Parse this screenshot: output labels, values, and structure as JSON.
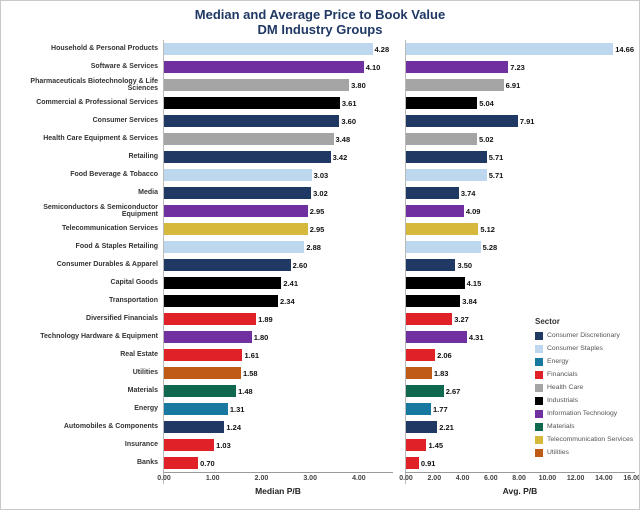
{
  "title": {
    "line1": "Median and Average Price to Book Value",
    "line2": "DM Industry Groups"
  },
  "chart_data": {
    "type": "bar",
    "orientation": "horizontal",
    "grid": false,
    "panels": [
      {
        "name": "median",
        "xlabel": "Median P/B",
        "xlim": [
          0,
          4.7
        ],
        "ticks": [
          "0.00",
          "1.00",
          "2.00",
          "3.00",
          "4.00"
        ],
        "tick_values": [
          0,
          1,
          2,
          3,
          4
        ]
      },
      {
        "name": "average",
        "xlabel": "Avg. P/B",
        "xlim": [
          0,
          16.2
        ],
        "ticks": [
          "0.00",
          "2.00",
          "4.00",
          "6.00",
          "8.00",
          "10.00",
          "12.00",
          "14.00",
          "16.00"
        ],
        "tick_values": [
          0,
          2,
          4,
          6,
          8,
          10,
          12,
          14,
          16
        ]
      }
    ],
    "rows": [
      {
        "label": "Household & Personal Products",
        "sector": "Consumer Staples",
        "median": 4.28,
        "average": 14.66
      },
      {
        "label": "Software & Services",
        "sector": "Information Technology",
        "median": 4.1,
        "average": 7.23
      },
      {
        "label": "Pharmaceuticals Biotechnology & Life Sciences",
        "sector": "Health Care",
        "median": 3.8,
        "average": 6.91
      },
      {
        "label": "Commercial & Professional Services",
        "sector": "Industrials",
        "median": 3.61,
        "average": 5.04
      },
      {
        "label": "Consumer Services",
        "sector": "Consumer Discretionary",
        "median": 3.6,
        "average": 7.91
      },
      {
        "label": "Health Care Equipment & Services",
        "sector": "Health Care",
        "median": 3.48,
        "average": 5.02
      },
      {
        "label": "Retailing",
        "sector": "Consumer Discretionary",
        "median": 3.42,
        "average": 5.71
      },
      {
        "label": "Food Beverage & Tobacco",
        "sector": "Consumer Staples",
        "median": 3.03,
        "average": 5.71
      },
      {
        "label": "Media",
        "sector": "Consumer Discretionary",
        "median": 3.02,
        "average": 3.74
      },
      {
        "label": "Semiconductors & Semiconductor Equipment",
        "sector": "Information Technology",
        "median": 2.95,
        "average": 4.09
      },
      {
        "label": "Telecommunication Services",
        "sector": "Telecommunication Services",
        "median": 2.95,
        "average": 5.12
      },
      {
        "label": "Food & Staples Retailing",
        "sector": "Consumer Staples",
        "median": 2.88,
        "average": 5.28
      },
      {
        "label": "Consumer Durables & Apparel",
        "sector": "Consumer Discretionary",
        "median": 2.6,
        "average": 3.5
      },
      {
        "label": "Capital Goods",
        "sector": "Industrials",
        "median": 2.41,
        "average": 4.15
      },
      {
        "label": "Transportation",
        "sector": "Industrials",
        "median": 2.34,
        "average": 3.84
      },
      {
        "label": "Diversified Financials",
        "sector": "Financials",
        "median": 1.89,
        "average": 3.27
      },
      {
        "label": "Technology Hardware & Equipment",
        "sector": "Information Technology",
        "median": 1.8,
        "average": 4.31
      },
      {
        "label": "Real Estate",
        "sector": "Financials",
        "median": 1.61,
        "average": 2.06
      },
      {
        "label": "Utilities",
        "sector": "Utilities",
        "median": 1.58,
        "average": 1.83
      },
      {
        "label": "Materials",
        "sector": "Materials",
        "median": 1.48,
        "average": 2.67
      },
      {
        "label": "Energy",
        "sector": "Energy",
        "median": 1.31,
        "average": 1.77
      },
      {
        "label": "Automobiles & Components",
        "sector": "Consumer Discretionary",
        "median": 1.24,
        "average": 2.21
      },
      {
        "label": "Insurance",
        "sector": "Financials",
        "median": 1.03,
        "average": 1.45
      },
      {
        "label": "Banks",
        "sector": "Financials",
        "median": 0.7,
        "average": 0.91
      }
    ],
    "legend": {
      "title": "Sector",
      "position": "right-bottom",
      "items": [
        {
          "label": "Consumer Discretionary",
          "color": "#1F3864"
        },
        {
          "label": "Consumer Staples",
          "color": "#BDD7EE"
        },
        {
          "label": "Energy",
          "color": "#1878A0"
        },
        {
          "label": "Financials",
          "color": "#E02128"
        },
        {
          "label": "Health Care",
          "color": "#A5A5A5"
        },
        {
          "label": "Industrials",
          "color": "#000000"
        },
        {
          "label": "Information Technology",
          "color": "#7030A0"
        },
        {
          "label": "Materials",
          "color": "#10694F"
        },
        {
          "label": "Telecommunication Services",
          "color": "#D6B83C"
        },
        {
          "label": "Utilities",
          "color": "#C05A17"
        }
      ]
    }
  }
}
